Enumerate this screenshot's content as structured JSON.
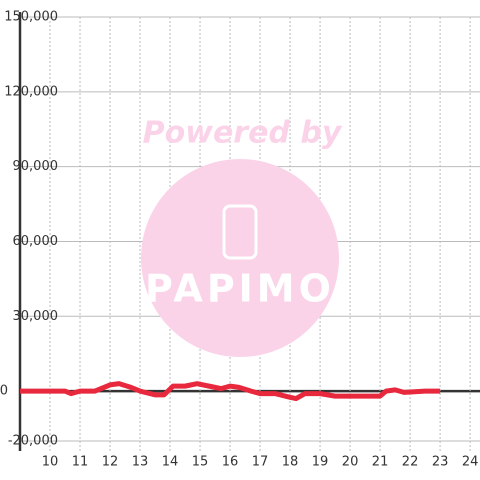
{
  "chart_data": {
    "type": "line",
    "watermark": [
      "Powered by",
      "PAPIMO"
    ],
    "x": [
      9,
      10.5,
      10.7,
      11,
      11.5,
      12,
      12.3,
      12.7,
      13,
      13.5,
      13.8,
      14.1,
      14.5,
      14.9,
      15.3,
      15.7,
      16,
      16.3,
      16.7,
      17,
      17.5,
      18,
      18.2,
      18.5,
      19,
      19.5,
      20,
      21,
      21.2,
      21.5,
      21.8,
      22.5,
      23
    ],
    "series": [
      {
        "color": "#e8283c",
        "values": [
          0,
          0,
          -1000,
          0,
          0,
          2500,
          3000,
          1500,
          0,
          -1500,
          -1500,
          2000,
          2000,
          3000,
          2000,
          1000,
          2000,
          1500,
          0,
          -1000,
          -1000,
          -2500,
          -3000,
          -1000,
          -1000,
          -2000,
          -2000,
          -2000,
          0,
          500,
          -500,
          0,
          0
        ]
      }
    ],
    "xlim": [
      9,
      24.33
    ],
    "xticks": [
      10,
      11,
      12,
      13,
      14,
      15,
      16,
      17,
      18,
      19,
      20,
      21,
      22,
      23,
      24
    ],
    "ylim": [
      -20000,
      150000
    ],
    "yticks": [
      {
        "value": -20000,
        "label": "-20,000"
      },
      0,
      {
        "value": 30000,
        "label": "30,000"
      },
      {
        "value": 60000,
        "label": "60,000"
      },
      {
        "value": 90000,
        "label": "90,000"
      },
      {
        "value": 120000,
        "label": "120,000"
      },
      {
        "value": 150000,
        "label": "150,000"
      }
    ],
    "grid": true
  }
}
